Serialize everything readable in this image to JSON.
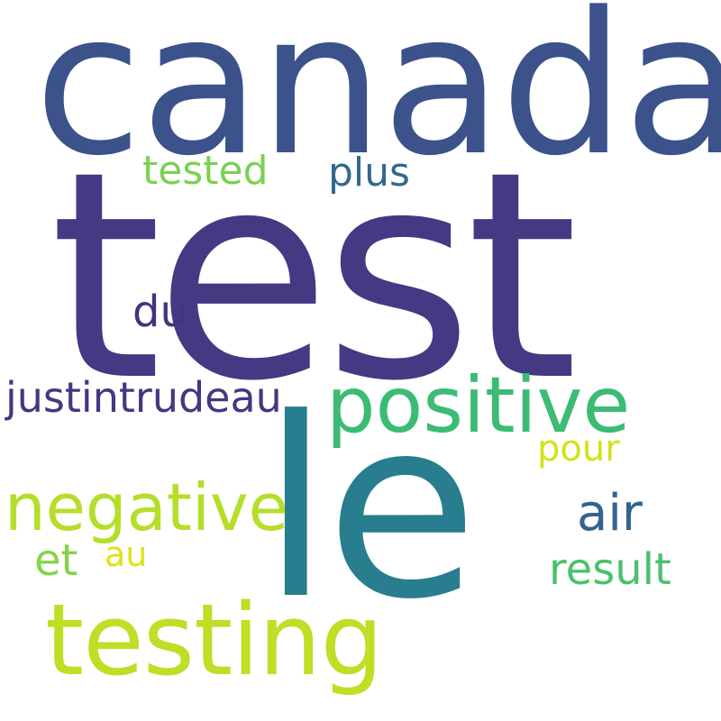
{
  "words": [
    {
      "key": "canada",
      "text": "canada",
      "color": "#3b528b"
    },
    {
      "key": "test",
      "text": "test",
      "color": "#443983"
    },
    {
      "key": "le",
      "text": "le",
      "color": "#287d8e"
    },
    {
      "key": "positive",
      "text": "positive",
      "color": "#3cbb75"
    },
    {
      "key": "testing",
      "text": "testing",
      "color": "#bddf26"
    },
    {
      "key": "negative",
      "text": "negative",
      "color": "#b5de2b"
    },
    {
      "key": "justintrudeau",
      "text": "justintrudeau",
      "color": "#453781"
    },
    {
      "key": "tested",
      "text": "tested",
      "color": "#7ad151"
    },
    {
      "key": "plus",
      "text": "plus",
      "color": "#31688e"
    },
    {
      "key": "du",
      "text": "du",
      "color": "#46327e"
    },
    {
      "key": "air",
      "text": "air",
      "color": "#32648e"
    },
    {
      "key": "pour",
      "text": "pour",
      "color": "#d2e21b"
    },
    {
      "key": "result",
      "text": "result",
      "color": "#4ac16d"
    },
    {
      "key": "et",
      "text": "et",
      "color": "#84d44b"
    },
    {
      "key": "au",
      "text": "au",
      "color": "#dde318"
    }
  ]
}
